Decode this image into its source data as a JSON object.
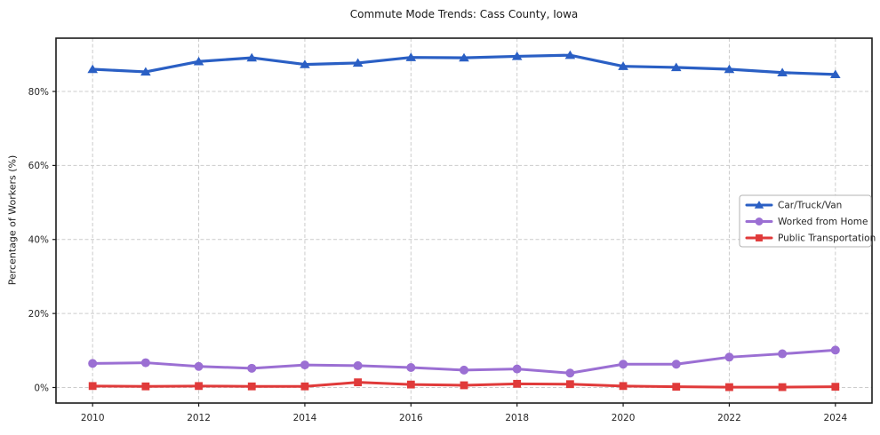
{
  "title": "Commute Mode Trends: Cass County, Iowa",
  "chart_data": {
    "type": "line",
    "title": "Commute Mode Trends: Cass County, Iowa",
    "xlabel": "",
    "ylabel": "Percentage of Workers (%)",
    "x": [
      2010,
      2011,
      2012,
      2013,
      2014,
      2015,
      2016,
      2017,
      2018,
      2019,
      2020,
      2021,
      2022,
      2023,
      2024
    ],
    "series": [
      {
        "name": "Car/Truck/Van",
        "color": "#2a5fc4",
        "marker": "triangle",
        "line_width": 3.2,
        "values": [
          86.0,
          85.3,
          88.1,
          89.1,
          87.3,
          87.7,
          89.2,
          89.1,
          89.5,
          89.8,
          86.8,
          86.5,
          86.0,
          85.1,
          84.6
        ]
      },
      {
        "name": "Worked from Home",
        "color": "#9b6fd3",
        "marker": "circle",
        "line_width": 3.0,
        "values": [
          6.5,
          6.7,
          5.7,
          5.2,
          6.1,
          5.9,
          5.4,
          4.7,
          5.0,
          3.9,
          6.3,
          6.3,
          8.2,
          9.1,
          10.1
        ]
      },
      {
        "name": "Public Transportation",
        "color": "#e03a3a",
        "marker": "square",
        "line_width": 3.0,
        "values": [
          0.4,
          0.3,
          0.4,
          0.3,
          0.3,
          1.4,
          0.8,
          0.6,
          1.0,
          0.9,
          0.4,
          0.2,
          0.1,
          0.1,
          0.2
        ]
      }
    ],
    "xticks": [
      2010,
      2012,
      2014,
      2016,
      2018,
      2020,
      2022,
      2024
    ],
    "yticks": [
      0,
      20,
      40,
      60,
      80
    ],
    "ytick_labels": [
      "0%",
      "20%",
      "40%",
      "60%",
      "80%"
    ],
    "xlim": [
      2009.31,
      2024.69
    ],
    "ylim": [
      -4.2,
      94.4
    ],
    "grid": true,
    "grid_style": "dashed",
    "legend_position": "center-right",
    "colors": {
      "grid": "#cccccc",
      "spine": "#1a1a1a",
      "legend_border": "#b3b3b3",
      "text": "#262626"
    }
  }
}
